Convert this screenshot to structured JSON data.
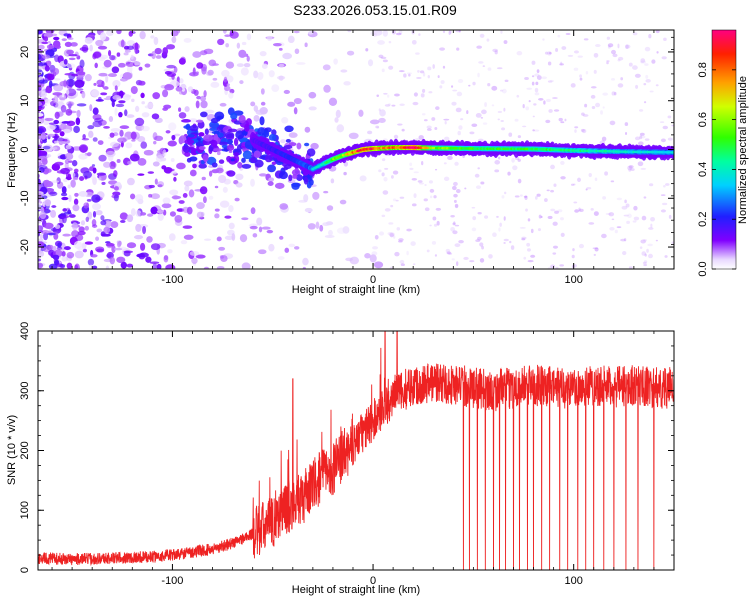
{
  "title": "S233.2026.053.15.01.R09",
  "chart_data": [
    {
      "type": "heatmap",
      "name": "spectrogram",
      "xlabel": "Height of straight line (km)",
      "ylabel": "Frequency (Hz)",
      "xlim": [
        -167,
        150
      ],
      "ylim": [
        -24.5,
        24.5
      ],
      "xticks": [
        -100,
        0,
        100
      ],
      "yticks": [
        -20,
        -10,
        0,
        10,
        20
      ],
      "colorbar": {
        "label": "Normalized spectral amplitude",
        "range": [
          0,
          0.96
        ],
        "ticks": [
          0.0,
          0.2,
          0.4,
          0.6,
          0.8
        ],
        "tick_labels": [
          "0.0",
          "0.2",
          "0.4",
          "0.6",
          "0.8"
        ]
      },
      "ridge": {
        "x": [
          -60,
          -50,
          -40,
          -30,
          -25,
          -20,
          -15,
          -10,
          -5,
          0,
          5,
          10,
          15,
          20,
          30,
          50,
          80,
          100,
          120,
          150
        ],
        "freq": [
          2,
          0,
          -2,
          -4,
          -3,
          -2,
          -1.2,
          -0.6,
          0,
          0.2,
          0.3,
          0.4,
          0.4,
          0.4,
          0.3,
          0.2,
          0.1,
          -0.2,
          -0.4,
          -0.6
        ],
        "amplitude": [
          0.2,
          0.25,
          0.3,
          0.35,
          0.4,
          0.55,
          0.6,
          0.8,
          0.9,
          0.85,
          0.75,
          0.8,
          0.85,
          0.95,
          0.6,
          0.5,
          0.5,
          0.45,
          0.4,
          0.35
        ]
      }
    },
    {
      "type": "line",
      "name": "snr",
      "xlabel": "Height of straight line (km)",
      "ylabel": "SNR (10 * v/v)",
      "xlim": [
        -167,
        150
      ],
      "ylim": [
        0,
        400
      ],
      "xticks": [
        -100,
        0,
        100
      ],
      "yticks": [
        0,
        100,
        200,
        300,
        400
      ],
      "color": "#ee2222",
      "series": [
        {
          "name": "SNR",
          "x": [
            -167,
            -150,
            -130,
            -110,
            -100,
            -90,
            -80,
            -70,
            -60,
            -50,
            -45,
            -40,
            -35,
            -30,
            -25,
            -20,
            -15,
            -10,
            -5,
            0,
            5,
            10,
            15,
            20,
            30,
            40,
            50,
            60,
            70,
            80,
            90,
            100,
            110,
            120,
            130,
            140,
            150
          ],
          "y": [
            20,
            18,
            20,
            22,
            25,
            30,
            35,
            45,
            60,
            80,
            100,
            110,
            120,
            140,
            160,
            170,
            190,
            210,
            230,
            250,
            270,
            290,
            300,
            310,
            315,
            310,
            305,
            300,
            305,
            310,
            305,
            305,
            310,
            305,
            310,
            305,
            305
          ],
          "spikes": [
            {
              "x": -40,
              "y": 320
            },
            {
              "x": 6,
              "y": 400
            },
            {
              "x": 12,
              "y": 420
            }
          ],
          "dropouts_x": [
            45,
            48,
            52,
            56,
            60,
            63,
            66,
            70,
            73,
            77,
            80,
            84,
            88,
            93,
            97,
            102,
            106,
            110,
            115,
            120,
            126,
            132,
            140
          ]
        }
      ]
    }
  ]
}
